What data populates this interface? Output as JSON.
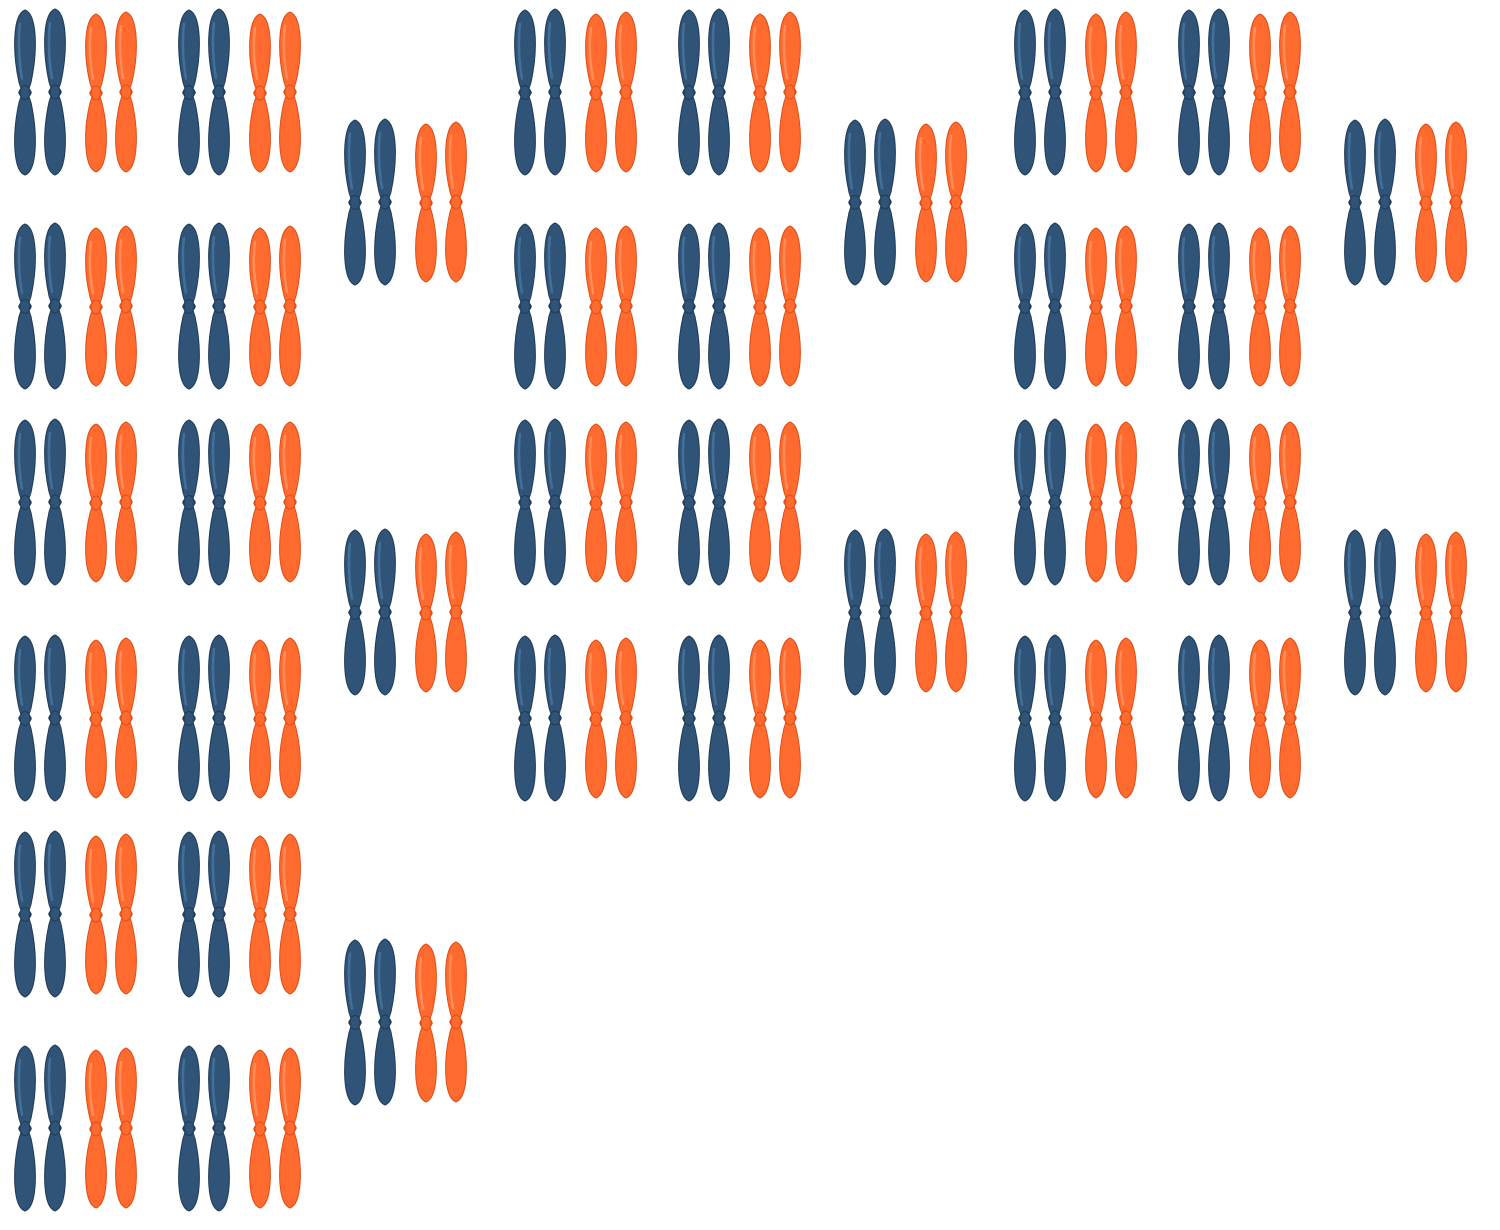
{
  "image": {
    "subject": "propeller sets",
    "background_color": "#ffffff"
  },
  "colors": {
    "blue_blade": "#2f5478",
    "blue_blade_highlight": "#4c78a3",
    "blue_blade_edge": "#1f3a56",
    "orange_blade": "#ff6a2e",
    "orange_blade_highlight": "#ff9a6a",
    "orange_blade_edge": "#e04e16"
  },
  "groups": [
    {
      "name": "group-1",
      "sets_per_pair_column": 6,
      "pair_columns": 2,
      "single_column_sets": 3
    },
    {
      "name": "group-2",
      "sets_per_pair_column": 4,
      "pair_columns": 2,
      "single_column_sets": 2
    },
    {
      "name": "group-3",
      "sets_per_pair_column": 4,
      "pair_columns": 2,
      "single_column_sets": 2
    }
  ],
  "propeller_set": {
    "blue_blades": 2,
    "orange_blades": 2
  }
}
